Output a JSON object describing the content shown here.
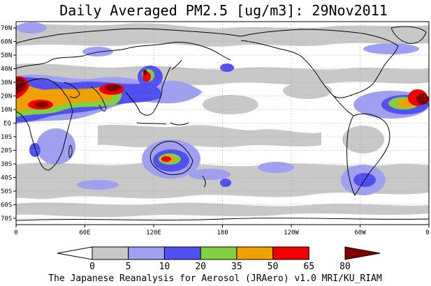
{
  "title": "Daily Averaged PM2.5 [ug/m3]: 29Nov2011",
  "footer": "The Japanese Reanalysis for Aerosol (JRAero) v1.0 MRI/KU_RIAM",
  "lat_labels": [
    "70N",
    "60N",
    "50N",
    "40N",
    "30N",
    "20N",
    "10N",
    "EQ",
    "10S",
    "20S",
    "30S",
    "40S",
    "50S",
    "60S",
    "70S"
  ],
  "lon_labels": [
    "0",
    "60E",
    "120E",
    "180",
    "120W",
    "60W",
    "0"
  ],
  "colorbar": {
    "ticks": [
      "0",
      "5",
      "10",
      "20",
      "35",
      "50",
      "65",
      "80"
    ],
    "bins": [
      {
        "color": "#ffffff"
      },
      {
        "color": "#c8c8c8"
      },
      {
        "color": "#a0a0f0"
      },
      {
        "color": "#5050f0"
      },
      {
        "color": "#80d040"
      },
      {
        "color": "#f0a000"
      },
      {
        "color": "#f00000"
      },
      {
        "color": "#800000"
      }
    ]
  }
}
